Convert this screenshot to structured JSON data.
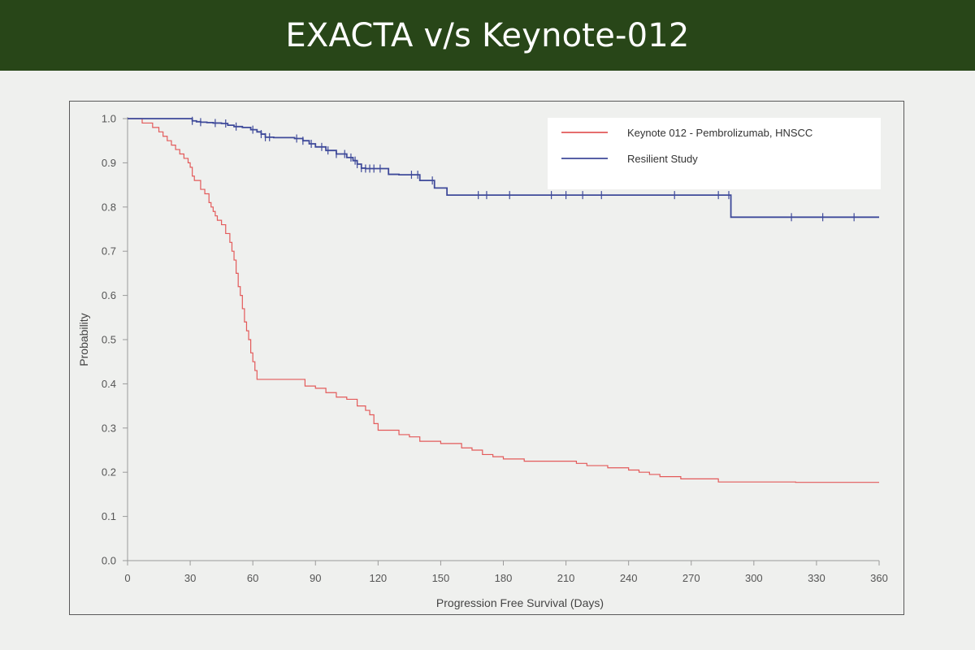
{
  "header": {
    "title": "EXACTA v/s Keynote-012"
  },
  "colors": {
    "header_bg": "#284618",
    "page_bg": "#eff0ee"
  },
  "chart_data": {
    "type": "line",
    "title": "",
    "xlabel": "Progression Free Survival (Days)",
    "ylabel": "Probability",
    "xlim": [
      0,
      360
    ],
    "ylim": [
      0,
      1.0
    ],
    "xticks": [
      0,
      30,
      60,
      90,
      120,
      150,
      180,
      210,
      240,
      270,
      300,
      330,
      360
    ],
    "yticks": [
      0.0,
      0.1,
      0.2,
      0.3,
      0.4,
      0.5,
      0.6,
      0.7,
      0.8,
      0.9,
      1.0
    ],
    "grid": false,
    "legend": "top-right",
    "series": [
      {
        "name": "Keynote 012 - Pembrolizumab, HNSCC",
        "color": "#e35a5a",
        "step": true,
        "x": [
          0,
          7,
          12,
          15,
          17,
          19,
          21,
          23,
          25,
          27,
          29,
          30,
          31,
          32,
          35,
          37,
          39,
          40,
          41,
          42,
          43,
          45,
          47,
          49,
          50,
          51,
          52,
          53,
          54,
          55,
          56,
          57,
          58,
          59,
          60,
          61,
          62,
          63,
          64,
          85,
          90,
          95,
          100,
          105,
          110,
          114,
          116,
          118,
          120,
          130,
          135,
          140,
          150,
          160,
          165,
          170,
          175,
          180,
          185,
          190,
          200,
          215,
          220,
          230,
          240,
          245,
          250,
          255,
          260,
          265,
          270,
          283,
          300,
          320,
          340,
          360
        ],
        "y": [
          1.0,
          0.99,
          0.98,
          0.97,
          0.96,
          0.95,
          0.94,
          0.93,
          0.92,
          0.91,
          0.9,
          0.89,
          0.87,
          0.86,
          0.84,
          0.83,
          0.81,
          0.8,
          0.79,
          0.78,
          0.77,
          0.76,
          0.74,
          0.72,
          0.7,
          0.68,
          0.65,
          0.62,
          0.6,
          0.57,
          0.54,
          0.52,
          0.5,
          0.47,
          0.45,
          0.43,
          0.41,
          0.41,
          0.41,
          0.395,
          0.39,
          0.38,
          0.37,
          0.365,
          0.35,
          0.34,
          0.33,
          0.31,
          0.295,
          0.285,
          0.28,
          0.27,
          0.265,
          0.255,
          0.25,
          0.24,
          0.235,
          0.23,
          0.23,
          0.225,
          0.225,
          0.22,
          0.215,
          0.21,
          0.205,
          0.2,
          0.195,
          0.19,
          0.19,
          0.185,
          0.185,
          0.178,
          0.178,
          0.177,
          0.177,
          0.177
        ]
      },
      {
        "name": "Resilient Study",
        "color": "#3f4a9a",
        "step": true,
        "x": [
          0,
          31,
          33,
          35,
          38,
          41,
          45,
          48,
          51,
          55,
          59,
          62,
          64,
          66,
          70,
          80,
          84,
          87,
          90,
          95,
          100,
          105,
          108,
          110,
          112,
          114,
          120,
          125,
          130,
          140,
          147,
          153,
          170,
          185,
          200,
          220,
          240,
          270,
          280,
          287,
          289,
          300,
          320,
          340,
          360
        ],
        "y": [
          1.0,
          0.995,
          0.993,
          0.992,
          0.991,
          0.99,
          0.989,
          0.985,
          0.982,
          0.98,
          0.975,
          0.97,
          0.965,
          0.958,
          0.957,
          0.955,
          0.95,
          0.943,
          0.936,
          0.928,
          0.92,
          0.912,
          0.905,
          0.897,
          0.888,
          0.887,
          0.887,
          0.874,
          0.873,
          0.86,
          0.843,
          0.827,
          0.827,
          0.827,
          0.827,
          0.827,
          0.827,
          0.827,
          0.827,
          0.827,
          0.777,
          0.777,
          0.777,
          0.777,
          0.777
        ],
        "censor_x": [
          31,
          35,
          42,
          47,
          52,
          60,
          64,
          66,
          68,
          81,
          84,
          88,
          93,
          96,
          100,
          104,
          107,
          109,
          110,
          112,
          114,
          116,
          118,
          121,
          136,
          139,
          146,
          168,
          172,
          183,
          203,
          210,
          218,
          227,
          262,
          283,
          288,
          318,
          333,
          348
        ]
      }
    ]
  }
}
